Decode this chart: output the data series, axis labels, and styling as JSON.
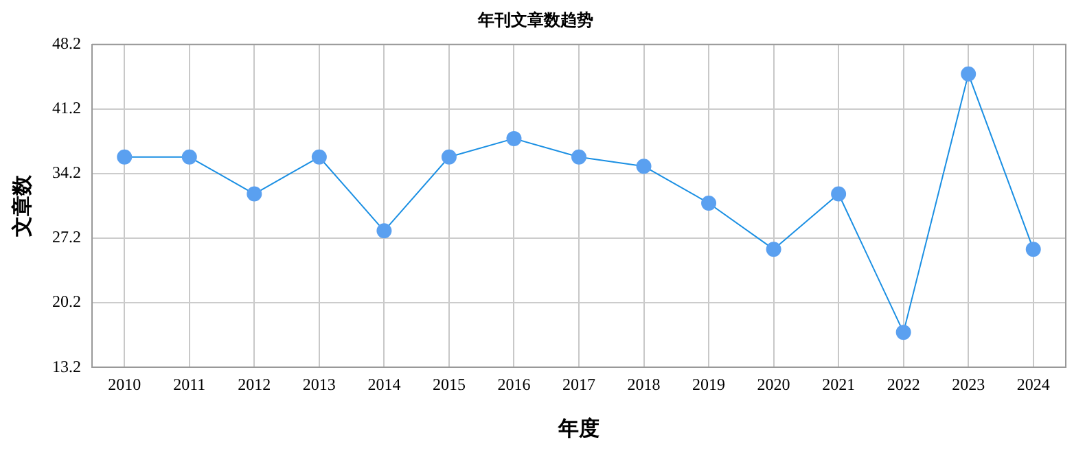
{
  "chart_data": {
    "type": "line",
    "title": "年刊文章数趋势",
    "xlabel": "年度",
    "ylabel": "文章数",
    "categories": [
      "2010",
      "2011",
      "2012",
      "2013",
      "2014",
      "2015",
      "2016",
      "2017",
      "2018",
      "2019",
      "2020",
      "2021",
      "2022",
      "2023",
      "2024"
    ],
    "series": [
      {
        "color": "#1a8fe3",
        "values": [
          36,
          36,
          32,
          36,
          28,
          36,
          38,
          36,
          35,
          31,
          26,
          32,
          17,
          45,
          26
        ]
      }
    ],
    "ylim": [
      13.2,
      48.2
    ],
    "yticks": [
      13.2,
      20.2,
      27.2,
      34.2,
      41.2,
      48.2
    ],
    "grid": true,
    "marker": "circle",
    "legend": false
  }
}
